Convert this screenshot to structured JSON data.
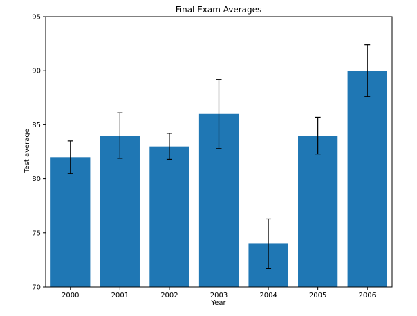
{
  "chart_data": {
    "type": "bar",
    "title": "Final Exam Averages",
    "xlabel": "Year",
    "ylabel": "Test average",
    "categories": [
      "2000",
      "2001",
      "2002",
      "2003",
      "2004",
      "2005",
      "2006"
    ],
    "values": [
      82,
      84,
      83,
      86,
      74,
      84,
      90
    ],
    "error": [
      1.5,
      2.1,
      1.2,
      3.2,
      2.3,
      1.7,
      2.4
    ],
    "ylim": [
      70,
      95
    ],
    "yticks": [
      70,
      75,
      80,
      85,
      90,
      95
    ],
    "bar_color": "#1f77b4",
    "errorbar_color": "#000000",
    "grid": false,
    "legend": false
  }
}
